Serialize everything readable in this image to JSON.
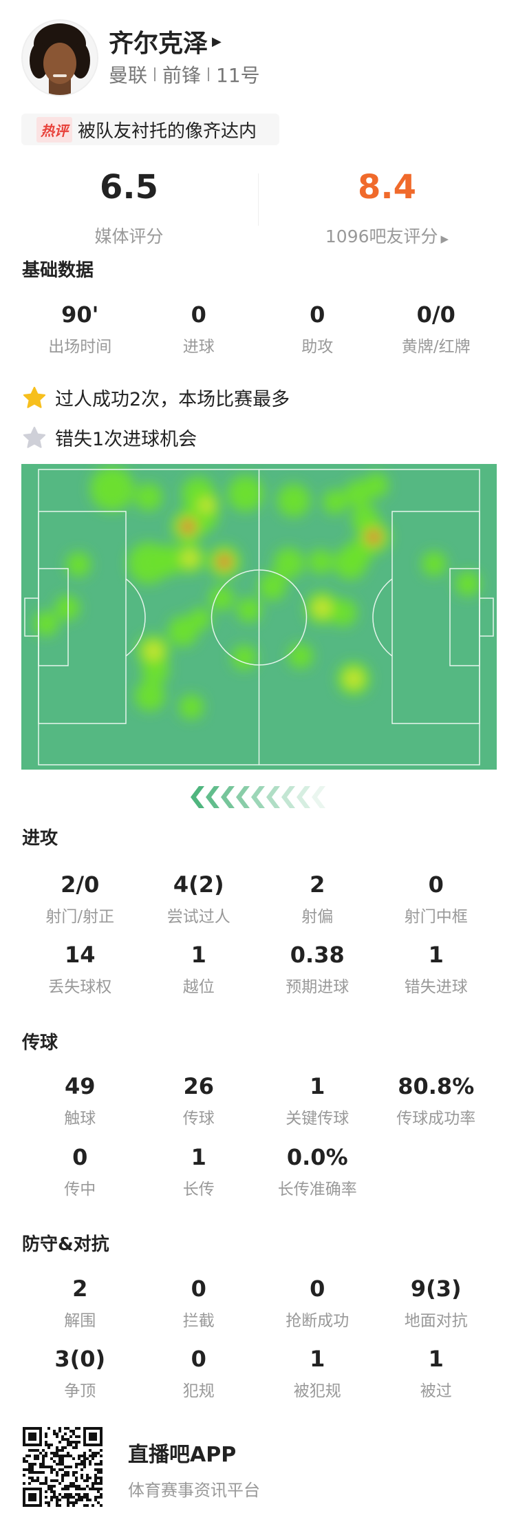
{
  "player": {
    "name": "齐尔克泽",
    "team": "曼联",
    "position": "前锋",
    "number": "11号",
    "hot_comment_tag": "热评",
    "hot_comment": "被队友衬托的像齐达内"
  },
  "ratings": {
    "media_score": "6.5",
    "media_label": "媒体评分",
    "fan_score": "8.4",
    "fan_label": "1096吧友评分",
    "fan_color": "#f06a2b"
  },
  "basic": {
    "title": "基础数据",
    "stats": [
      {
        "value": "90'",
        "label": "出场时间"
      },
      {
        "value": "0",
        "label": "进球"
      },
      {
        "value": "0",
        "label": "助攻"
      },
      {
        "value": "0/0",
        "label": "黄牌/红牌"
      }
    ]
  },
  "highlights": [
    {
      "icon": "star-gold-icon",
      "text": "过人成功2次，本场比赛最多"
    },
    {
      "icon": "star-gray-icon",
      "text": "错失1次进球机会"
    }
  ],
  "attack": {
    "title": "进攻",
    "rows": [
      [
        {
          "value": "2/0",
          "label": "射门/射正"
        },
        {
          "value": "4(2)",
          "label": "尝试过人"
        },
        {
          "value": "2",
          "label": "射偏"
        },
        {
          "value": "0",
          "label": "射门中框"
        }
      ],
      [
        {
          "value": "14",
          "label": "丢失球权"
        },
        {
          "value": "1",
          "label": "越位"
        },
        {
          "value": "0.38",
          "label": "预期进球"
        },
        {
          "value": "1",
          "label": "错失进球"
        }
      ]
    ]
  },
  "passing": {
    "title": "传球",
    "rows": [
      [
        {
          "value": "49",
          "label": "触球"
        },
        {
          "value": "26",
          "label": "传球"
        },
        {
          "value": "1",
          "label": "关键传球"
        },
        {
          "value": "80.8%",
          "label": "传球成功率"
        }
      ],
      [
        {
          "value": "0",
          "label": "传中"
        },
        {
          "value": "1",
          "label": "长传"
        },
        {
          "value": "0.0%",
          "label": "长传准确率"
        }
      ]
    ]
  },
  "defense": {
    "title": "防守&对抗",
    "rows": [
      [
        {
          "value": "2",
          "label": "解围"
        },
        {
          "value": "0",
          "label": "拦截"
        },
        {
          "value": "0",
          "label": "抢断成功"
        },
        {
          "value": "9(3)",
          "label": "地面对抗"
        }
      ],
      [
        {
          "value": "3(0)",
          "label": "争顶"
        },
        {
          "value": "0",
          "label": "犯规"
        },
        {
          "value": "1",
          "label": "被犯规"
        },
        {
          "value": "1",
          "label": "被过"
        }
      ]
    ]
  },
  "footer": {
    "app_name": "直播吧APP",
    "app_desc": "体育赛事资讯平台"
  },
  "colors": {
    "pitch": "#55b882",
    "accent": "#f06a2b"
  }
}
